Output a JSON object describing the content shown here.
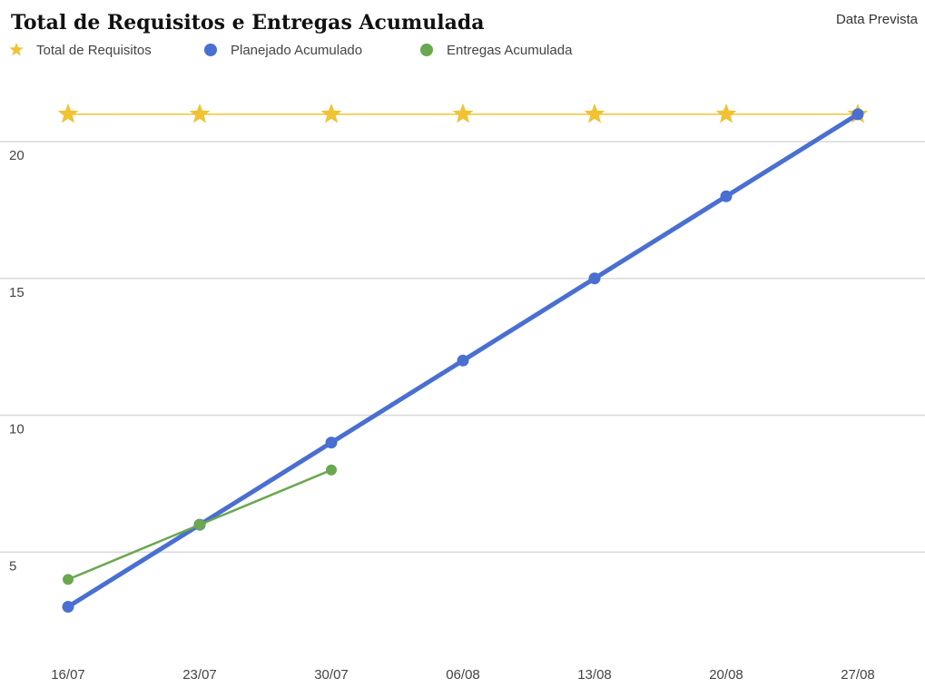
{
  "chart_data": {
    "type": "line",
    "title": "Total de Requisitos e Entregas Acumulada",
    "xlabel": "Data Prevista",
    "ylabel": "",
    "categories": [
      "16/07",
      "23/07",
      "30/07",
      "06/08",
      "13/08",
      "20/08",
      "27/08"
    ],
    "ylim": [
      0,
      25
    ],
    "yticks": [
      5,
      10,
      15,
      20
    ],
    "grid": true,
    "legend_position": "top-left",
    "series": [
      {
        "name": "Total de Requisitos",
        "marker": "star",
        "color": "#F1C232",
        "values": [
          21,
          21,
          21,
          21,
          21,
          21,
          21
        ]
      },
      {
        "name": "Planejado Acumulado",
        "marker": "circle",
        "color": "#4A6FD1",
        "values": [
          3,
          6,
          9,
          12,
          15,
          18,
          21
        ]
      },
      {
        "name": "Entregas Acumulada",
        "marker": "circle",
        "color": "#6AA84F",
        "values": [
          4,
          6,
          8,
          null,
          null,
          null,
          null
        ]
      }
    ]
  }
}
